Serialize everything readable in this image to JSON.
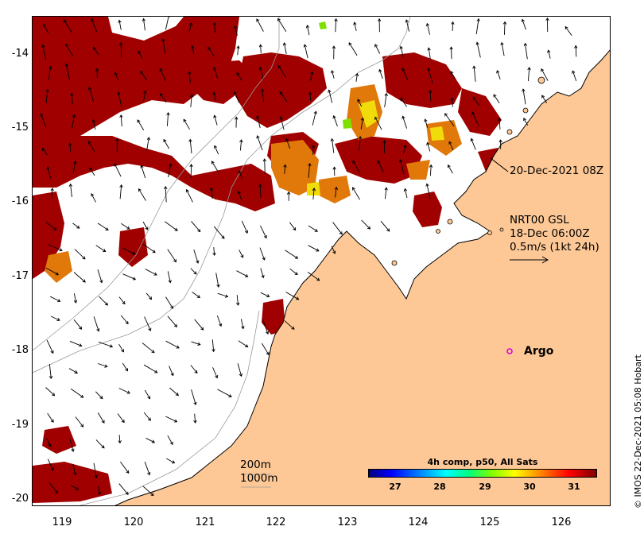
{
  "map": {
    "lon_ticks": [
      "119",
      "120",
      "121",
      "122",
      "123",
      "124",
      "125",
      "126"
    ],
    "lat_ticks": [
      "-14",
      "-15",
      "-16",
      "-17",
      "-18",
      "-19",
      "-20"
    ],
    "lon_range": [
      118.6,
      126.7
    ],
    "lat_range": [
      -13.5,
      -20.2
    ],
    "colors": {
      "land": "#fdc896",
      "sst_hot": "#a00000",
      "sst_warm": "#e0780a",
      "sst_yellow": "#f0dc0a",
      "ocean": "#ffffff"
    }
  },
  "annotations": {
    "current_label": "20-Dec-2021 08Z",
    "gsl_line1": "NRT00 GSL",
    "gsl_line2": "18-Dec 06:00Z",
    "gsl_line3": "0.5m/s (1kt 24h)",
    "depth_200": "200m",
    "depth_1000": "1000m",
    "argo_label": "Argo"
  },
  "colorbar": {
    "title": "4h comp, p50, All Sats",
    "ticks": [
      "27",
      "28",
      "29",
      "30",
      "31"
    ]
  },
  "copyright": "© IMOS 22-Dec-2021 05:08 Hobart"
}
